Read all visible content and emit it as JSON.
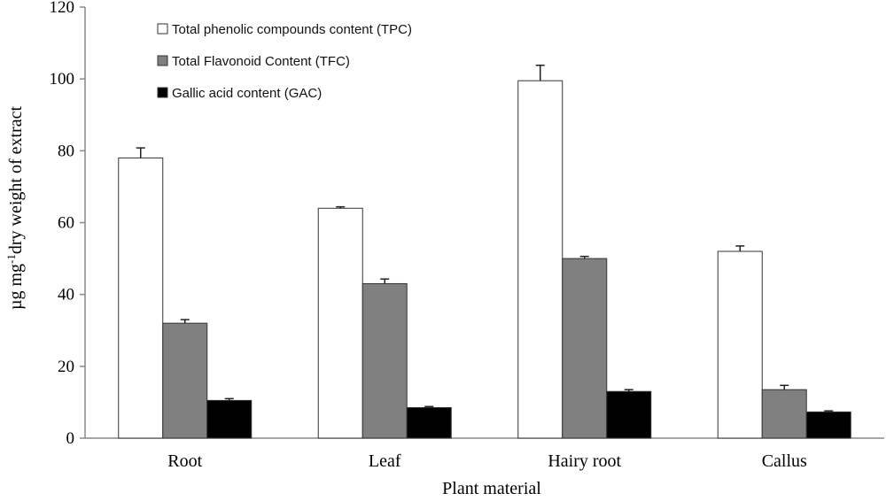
{
  "chart_data": {
    "type": "bar",
    "categories": [
      "Root",
      "Leaf",
      "Hairy root",
      "Callus"
    ],
    "series": [
      {
        "name": "Total phenolic compounds content (TPC)",
        "values": [
          78,
          64,
          99.5,
          52
        ],
        "errors": [
          2.8,
          0.4,
          4.3,
          1.5
        ],
        "color": "#ffffff"
      },
      {
        "name": "Total Flavonoid Content (TFC)",
        "values": [
          32,
          43,
          50,
          13.5
        ],
        "errors": [
          1.0,
          1.3,
          0.6,
          1.2
        ],
        "color": "#808080"
      },
      {
        "name": "Gallic acid content (GAC)",
        "values": [
          10.5,
          8.5,
          13,
          7.3
        ],
        "errors": [
          0.5,
          0.3,
          0.5,
          0.3
        ],
        "color": "#000000"
      }
    ],
    "yticks": [
      0,
      20,
      40,
      60,
      80,
      100,
      120
    ],
    "ylim": [
      0,
      120
    ],
    "xlabel": "Plant material",
    "ylabel": "µg mg-1dry weight of extract",
    "ylabel_parts": {
      "pre": "µg mg",
      "sup": "-1",
      "post": "dry weight of extract"
    },
    "legend_position": "top-left",
    "grid": false
  }
}
